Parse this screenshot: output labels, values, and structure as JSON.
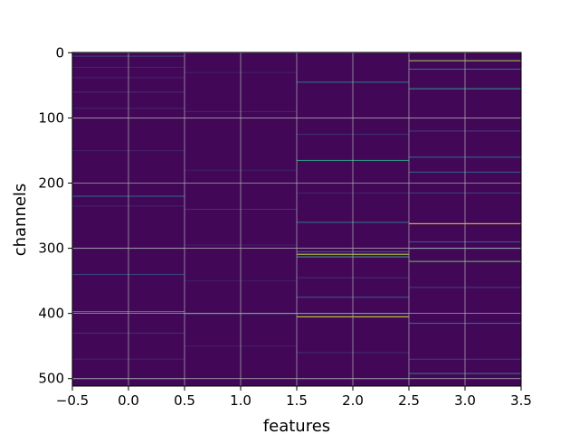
{
  "chart_data": {
    "type": "heatmap",
    "title": "",
    "xlabel": "features",
    "ylabel": "channels",
    "xlim": [
      -0.5,
      3.5
    ],
    "ylim": [
      511.5,
      -0.5
    ],
    "xticks": [
      -0.5,
      0.0,
      0.5,
      1.0,
      1.5,
      2.0,
      2.5,
      3.0,
      3.5
    ],
    "xtick_labels": [
      "−0.5",
      "0.0",
      "0.5",
      "1.0",
      "1.5",
      "2.0",
      "2.5",
      "3.0",
      "3.5"
    ],
    "yticks": [
      0,
      100,
      200,
      300,
      400,
      500
    ],
    "ytick_labels": [
      "0",
      "100",
      "200",
      "300",
      "400",
      "500"
    ],
    "grid": true,
    "colormap": "viridis",
    "background_value": 0.02,
    "columns": [
      {
        "feature": 0,
        "highlights": [
          {
            "channel": 5,
            "value": 0.2
          },
          {
            "channel": 22,
            "value": 0.12
          },
          {
            "channel": 38,
            "value": 0.12
          },
          {
            "channel": 60,
            "value": 0.14
          },
          {
            "channel": 85,
            "value": 0.12
          },
          {
            "channel": 150,
            "value": 0.1
          },
          {
            "channel": 220,
            "value": 0.35
          },
          {
            "channel": 235,
            "value": 0.12
          },
          {
            "channel": 300,
            "value": 0.2
          },
          {
            "channel": 340,
            "value": 0.22
          },
          {
            "channel": 397,
            "value": 0.5
          },
          {
            "channel": 430,
            "value": 0.15
          },
          {
            "channel": 470,
            "value": 0.12
          },
          {
            "channel": 500,
            "value": 0.25
          }
        ]
      },
      {
        "feature": 1,
        "highlights": [
          {
            "channel": 30,
            "value": 0.1
          },
          {
            "channel": 90,
            "value": 0.12
          },
          {
            "channel": 180,
            "value": 0.1
          },
          {
            "channel": 240,
            "value": 0.15
          },
          {
            "channel": 295,
            "value": 0.1
          },
          {
            "channel": 350,
            "value": 0.1
          },
          {
            "channel": 400,
            "value": 0.55
          },
          {
            "channel": 450,
            "value": 0.1
          }
        ]
      },
      {
        "feature": 2,
        "highlights": [
          {
            "channel": 45,
            "value": 0.4
          },
          {
            "channel": 125,
            "value": 0.15
          },
          {
            "channel": 165,
            "value": 0.55
          },
          {
            "channel": 215,
            "value": 0.12
          },
          {
            "channel": 260,
            "value": 0.4
          },
          {
            "channel": 305,
            "value": 0.3
          },
          {
            "channel": 309,
            "value": 0.9
          },
          {
            "channel": 313,
            "value": 0.6
          },
          {
            "channel": 345,
            "value": 0.15
          },
          {
            "channel": 375,
            "value": 0.3
          },
          {
            "channel": 400,
            "value": 0.5
          },
          {
            "channel": 405,
            "value": 0.95
          },
          {
            "channel": 460,
            "value": 0.15
          },
          {
            "channel": 500,
            "value": 0.2
          }
        ]
      },
      {
        "feature": 3,
        "highlights": [
          {
            "channel": 12,
            "value": 0.85
          },
          {
            "channel": 25,
            "value": 0.4
          },
          {
            "channel": 55,
            "value": 0.55
          },
          {
            "channel": 120,
            "value": 0.2
          },
          {
            "channel": 160,
            "value": 0.35
          },
          {
            "channel": 183,
            "value": 0.3
          },
          {
            "channel": 215,
            "value": 0.2
          },
          {
            "channel": 262,
            "value": 0.95
          },
          {
            "channel": 290,
            "value": 0.3
          },
          {
            "channel": 300,
            "value": 0.45
          },
          {
            "channel": 320,
            "value": 0.75
          },
          {
            "channel": 360,
            "value": 0.2
          },
          {
            "channel": 415,
            "value": 0.4
          },
          {
            "channel": 470,
            "value": 0.2
          },
          {
            "channel": 492,
            "value": 0.45
          }
        ]
      }
    ]
  }
}
